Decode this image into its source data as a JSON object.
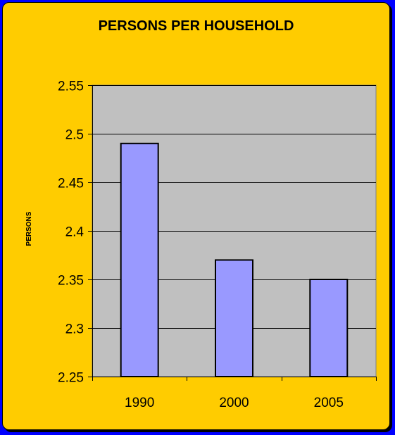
{
  "chart_data": {
    "type": "bar",
    "title": "PERSONS PER HOUSEHOLD",
    "xlabel": "",
    "ylabel": "PERSONS",
    "categories": [
      "1990",
      "2000",
      "2005"
    ],
    "values": [
      2.49,
      2.37,
      2.35
    ],
    "ylim": [
      2.25,
      2.55
    ],
    "yticks": [
      2.25,
      2.3,
      2.35,
      2.4,
      2.45,
      2.5,
      2.55
    ],
    "ytick_labels": [
      "2.25",
      "2.3",
      "2.35",
      "2.4",
      "2.45",
      "2.5",
      "2.55"
    ],
    "grid": true,
    "legend": "none",
    "colors": {
      "background": "#0000ff",
      "panel": "#ffcc00",
      "plot_area": "#c0c0c0",
      "bar": "#9999ff",
      "bar_border": "#000000"
    }
  }
}
